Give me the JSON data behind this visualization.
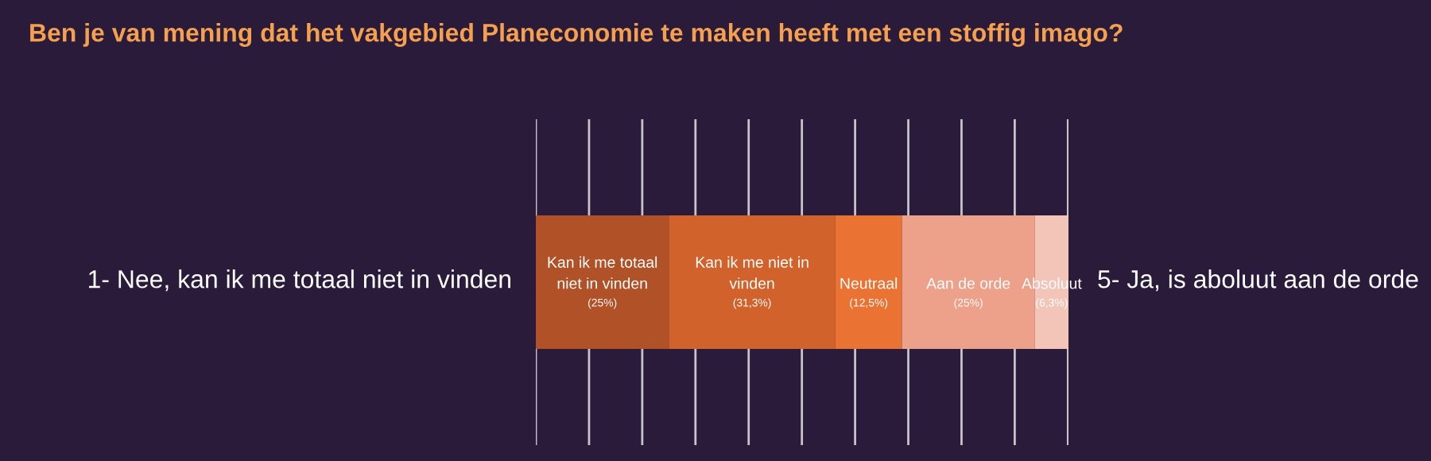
{
  "chart_data": {
    "type": "bar",
    "orientation": "horizontal",
    "stacked": true,
    "title": "Ben je van mening dat het vakgebied Planeconomie te maken heeft met een stoffig imago?",
    "categories": [
      null
    ],
    "series": [
      {
        "name": "Kan ik me totaal niet in vinden",
        "color": "#b05128",
        "values": [
          25
        ],
        "value_labels": [
          "(25%)"
        ]
      },
      {
        "name": "Kan ik me niet in vinden",
        "color": "#d2622b",
        "values": [
          31.3
        ],
        "value_labels": [
          "(31,3%)"
        ]
      },
      {
        "name": "Neutraal",
        "color": "#ea7233",
        "values": [
          12.5
        ],
        "value_labels": [
          "(12,5%)"
        ]
      },
      {
        "name": "Aan de orde",
        "color": "#eda08a",
        "values": [
          25
        ],
        "value_labels": [
          "(25%)"
        ]
      },
      {
        "name": "Absoluut",
        "color": "#f3c4b8",
        "values": [
          6.3
        ],
        "value_labels": [
          "(6,3%)"
        ]
      }
    ],
    "xlim": [
      0,
      100.1
    ],
    "xticks": [
      {
        "value": 0,
        "label": null
      },
      {
        "value": 10,
        "label": null
      },
      {
        "value": 20,
        "label": null
      },
      {
        "value": 30,
        "label": null
      },
      {
        "value": 40,
        "label": null
      },
      {
        "value": 50,
        "label": null
      },
      {
        "value": 60,
        "label": null
      },
      {
        "value": 70,
        "label": null
      },
      {
        "value": 80,
        "label": null
      },
      {
        "value": 90,
        "label": null
      },
      {
        "value": 100,
        "label": null
      }
    ],
    "grid": "x",
    "legend": false,
    "annotations": [
      "1- Nee, kan ik me totaal niet in vinden",
      "5- Ja, is aboluut aan de orde"
    ]
  }
}
